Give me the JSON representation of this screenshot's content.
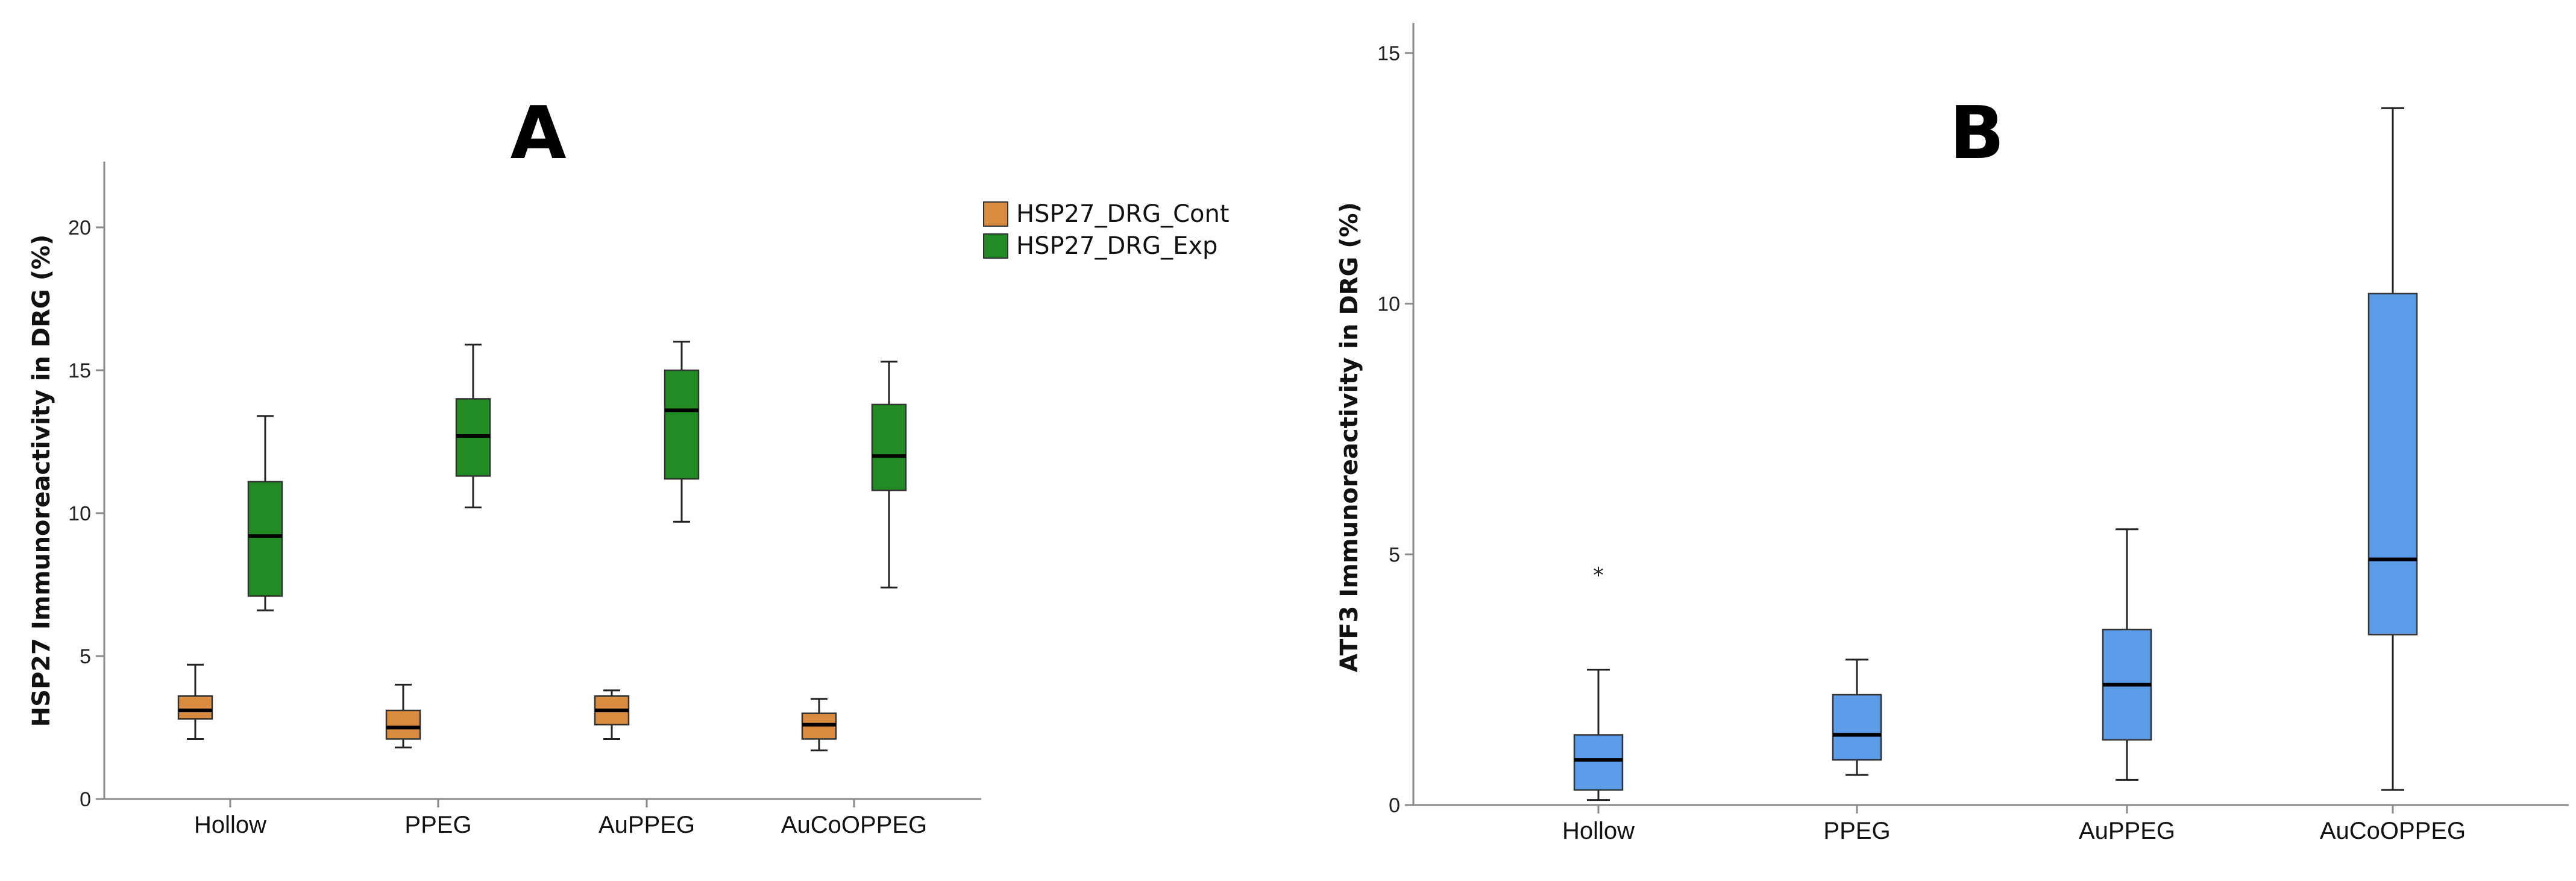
{
  "chart_data": [
    {
      "type": "box",
      "panel_label": "A",
      "ylabel": "HSP27 Immunoreactivity in DRG (%)",
      "ylim": [
        0,
        22.3
      ],
      "yticks": [
        0,
        5,
        10,
        15,
        20
      ],
      "categories": [
        "Hollow",
        "PPEG",
        "AuPPEG",
        "AuCoOPPEG"
      ],
      "legend": {
        "position": "top-right"
      },
      "series": [
        {
          "name": "HSP27_DRG_Cont",
          "color": "#D98C3F",
          "boxes": [
            {
              "min": 2.1,
              "q1": 2.8,
              "median": 3.1,
              "q3": 3.6,
              "max": 4.7
            },
            {
              "min": 1.8,
              "q1": 2.1,
              "median": 2.5,
              "q3": 3.1,
              "max": 4.0
            },
            {
              "min": 2.1,
              "q1": 2.6,
              "median": 3.1,
              "q3": 3.6,
              "max": 3.8
            },
            {
              "min": 1.7,
              "q1": 2.1,
              "median": 2.6,
              "q3": 3.0,
              "max": 3.5
            }
          ]
        },
        {
          "name": "HSP27_DRG_Exp",
          "color": "#238B23",
          "boxes": [
            {
              "min": 6.6,
              "q1": 7.1,
              "median": 9.2,
              "q3": 11.1,
              "max": 13.4
            },
            {
              "min": 10.2,
              "q1": 11.3,
              "median": 12.7,
              "q3": 14.0,
              "max": 15.9
            },
            {
              "min": 9.7,
              "q1": 11.2,
              "median": 13.6,
              "q3": 15.0,
              "max": 16.0
            },
            {
              "min": 7.4,
              "q1": 10.8,
              "median": 12.0,
              "q3": 13.8,
              "max": 15.3
            }
          ]
        }
      ]
    },
    {
      "type": "box",
      "panel_label": "B",
      "ylabel": "ATF3 Immunoreactivity in DRG (%)",
      "ylim": [
        0,
        15.6
      ],
      "yticks": [
        0,
        5,
        10,
        15
      ],
      "categories": [
        "Hollow",
        "PPEG",
        "AuPPEG",
        "AuCoOPPEG"
      ],
      "series": [
        {
          "color": "#5B9BE8",
          "boxes": [
            {
              "min": 0.1,
              "q1": 0.3,
              "median": 0.9,
              "q3": 1.4,
              "max": 2.7,
              "outliers": [
                4.7
              ]
            },
            {
              "min": 0.6,
              "q1": 0.9,
              "median": 1.4,
              "q3": 2.2,
              "max": 2.9
            },
            {
              "min": 0.5,
              "q1": 1.3,
              "median": 2.4,
              "q3": 3.5,
              "max": 5.5
            },
            {
              "min": 0.3,
              "q1": 3.4,
              "median": 4.9,
              "q3": 10.2,
              "max": 13.9
            }
          ]
        }
      ]
    }
  ]
}
